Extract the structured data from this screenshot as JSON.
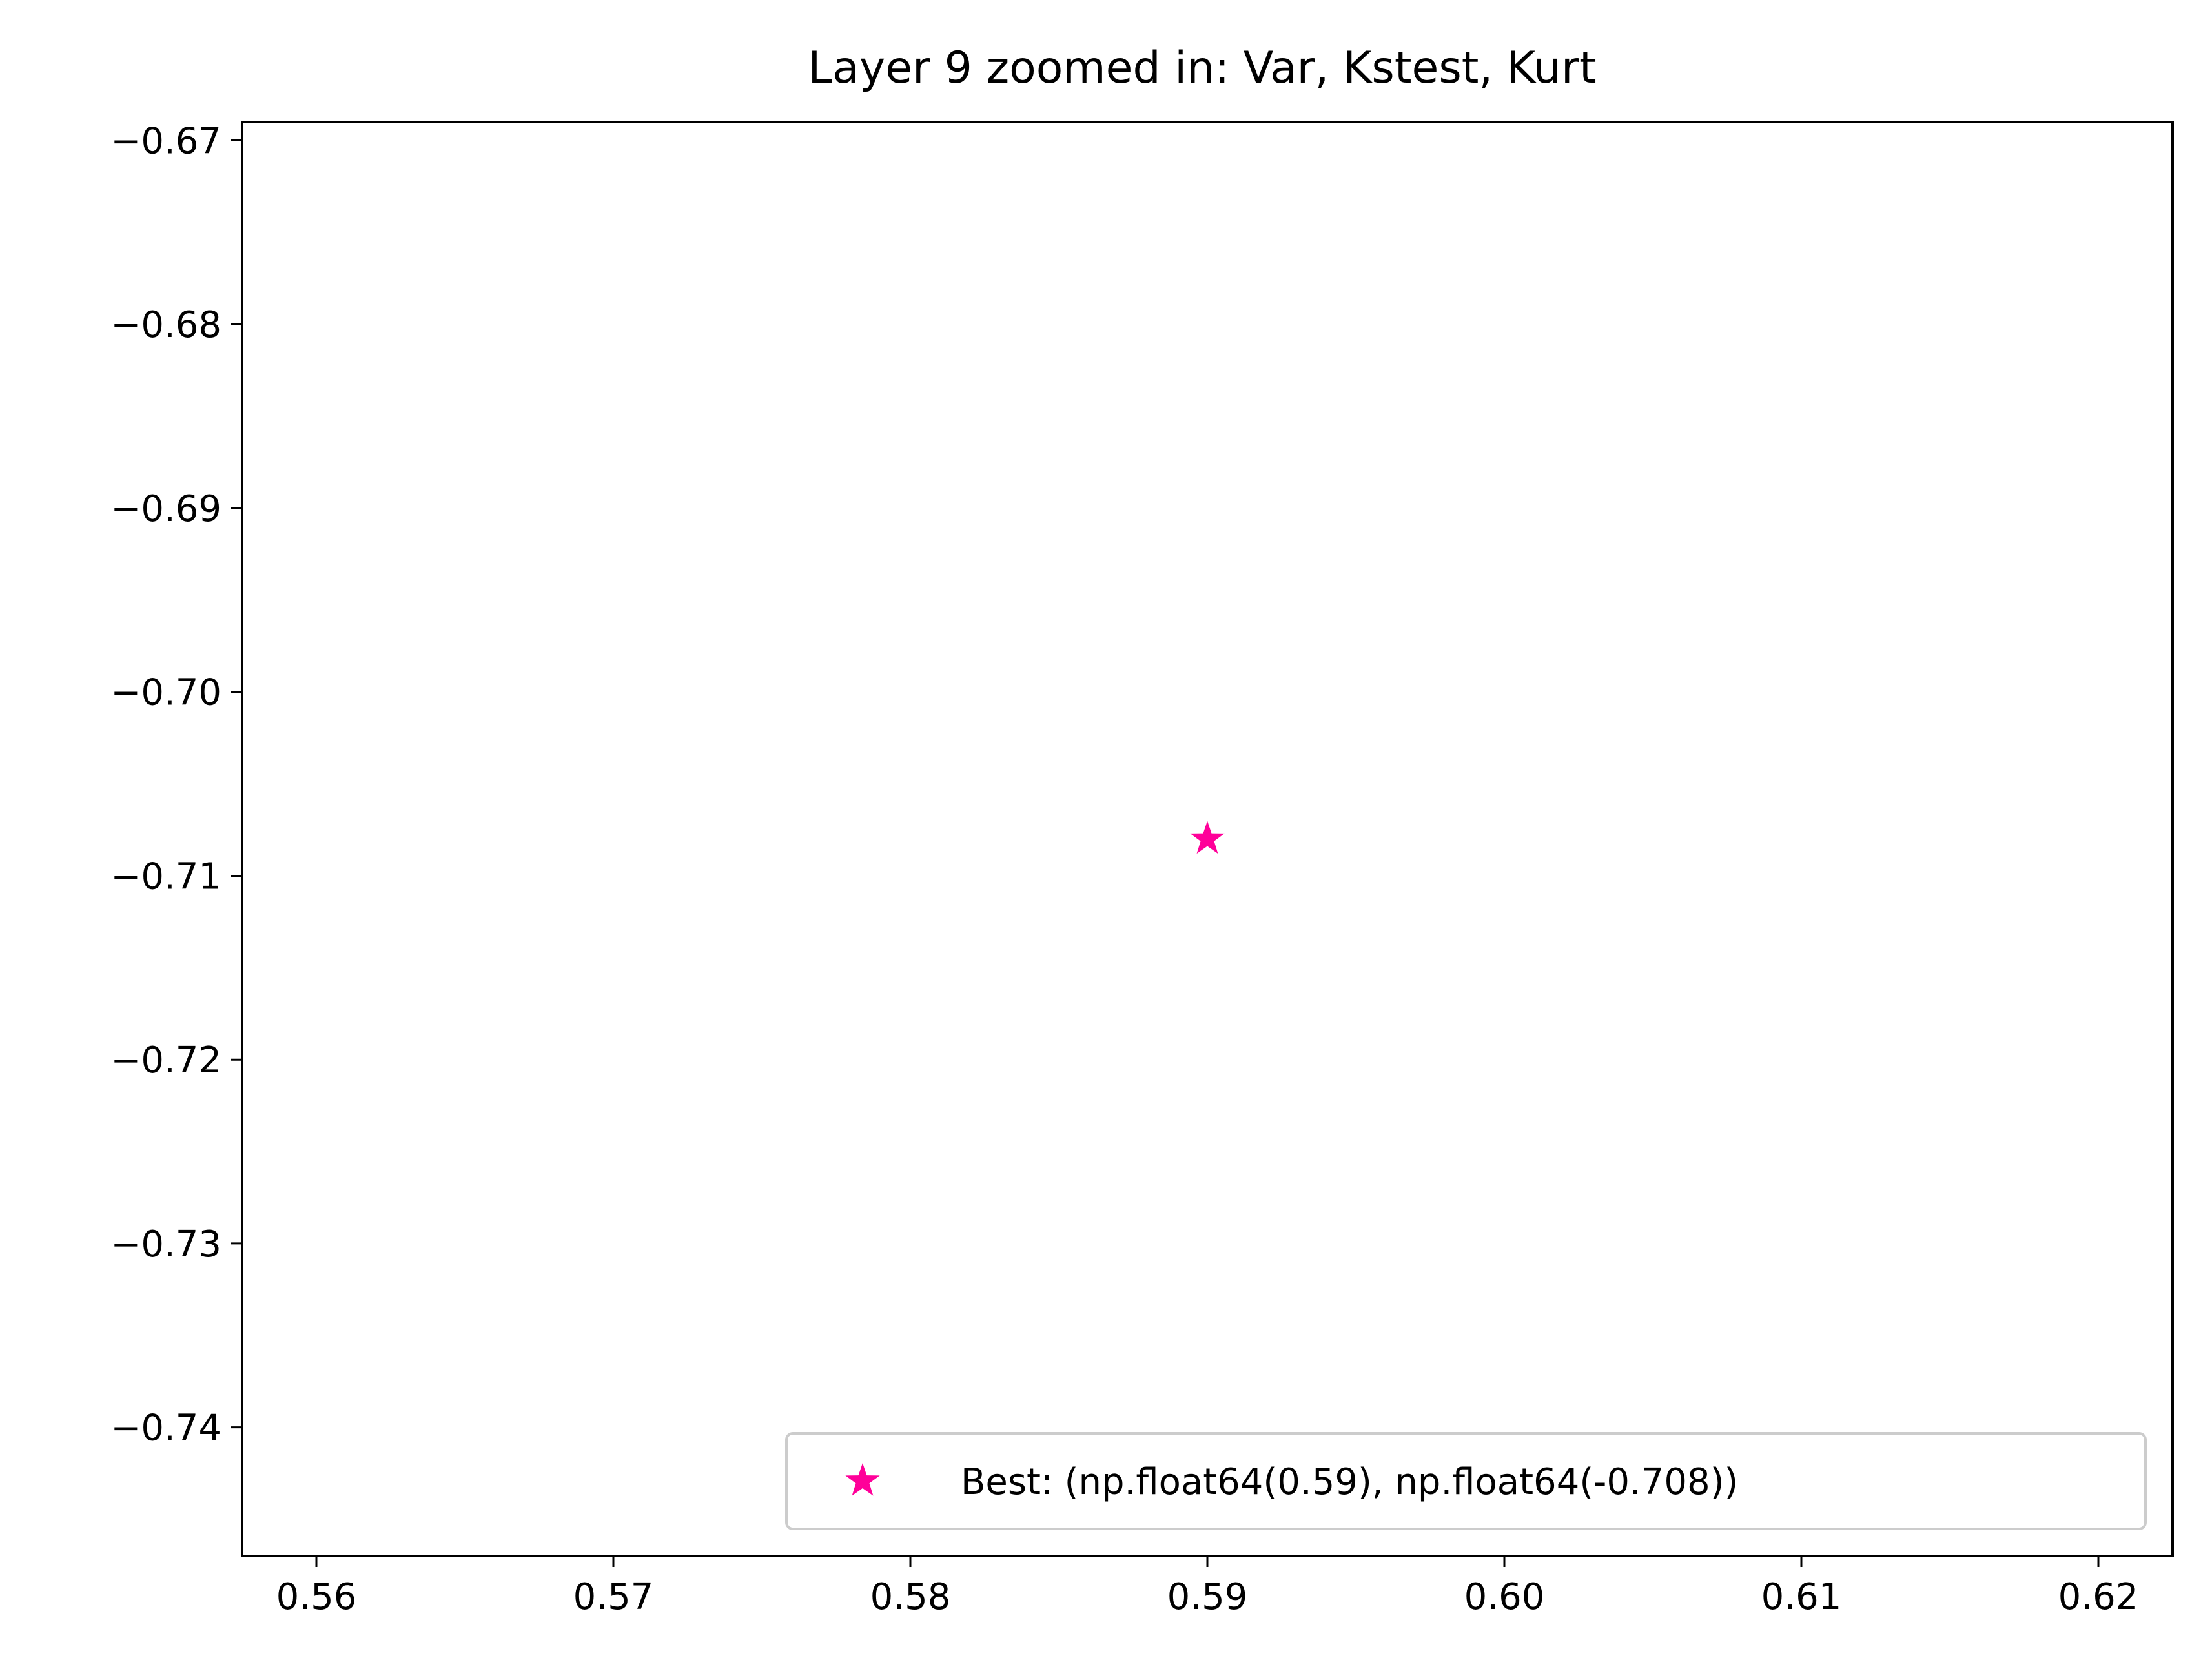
{
  "chart_data": {
    "type": "scatter",
    "title": "Layer 9 zoomed in: Var, Kstest, Kurt",
    "xlabel": "",
    "ylabel": "",
    "xlim": [
      0.5575,
      0.6225
    ],
    "ylim": [
      -0.747,
      -0.669
    ],
    "x_ticks": [
      0.56,
      0.57,
      0.58,
      0.59,
      0.6,
      0.61,
      0.62
    ],
    "x_tick_labels": [
      "0.56",
      "0.57",
      "0.58",
      "0.59",
      "0.60",
      "0.61",
      "0.62"
    ],
    "y_ticks": [
      -0.67,
      -0.68,
      -0.69,
      -0.7,
      -0.71,
      -0.72,
      -0.73,
      -0.74
    ],
    "y_tick_labels": [
      "−0.67",
      "−0.68",
      "−0.69",
      "−0.70",
      "−0.71",
      "−0.72",
      "−0.73",
      "−0.74"
    ],
    "grid": false,
    "legend_position": "lower-right",
    "series": [
      {
        "name": "Best: (np.float64(0.59), np.float64(-0.708))",
        "marker": "star",
        "color": "#ff0099",
        "points": [
          {
            "x": 0.59,
            "y": -0.708
          }
        ]
      }
    ]
  }
}
